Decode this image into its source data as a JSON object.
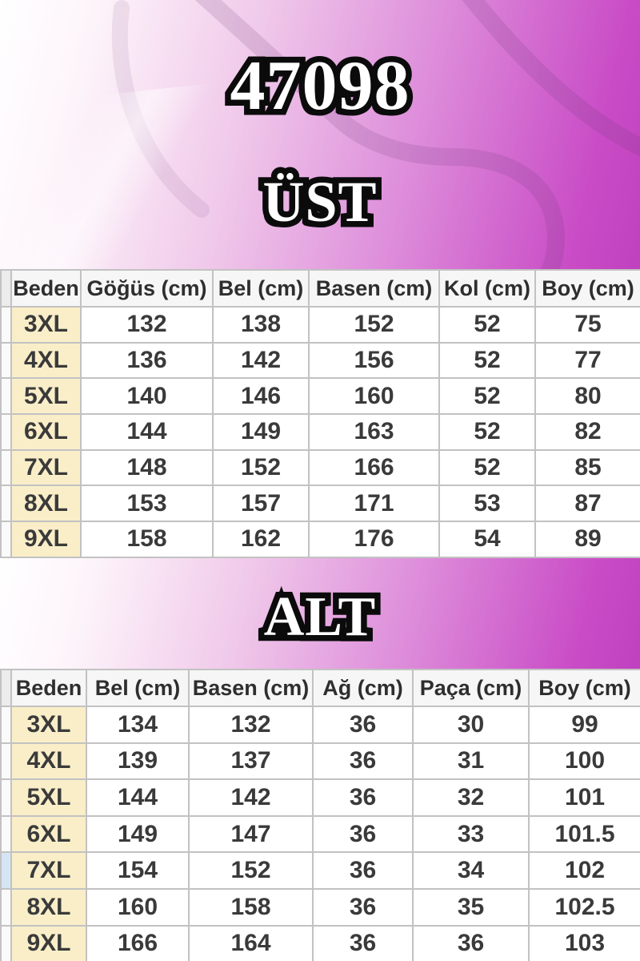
{
  "page": {
    "product_code": "47098",
    "section_top_label": "ÜST",
    "section_bottom_label": "ALT"
  },
  "icons": {
    "background": "hanger-icon"
  },
  "colors": {
    "gradient_magenta": "#c041bf",
    "gradient_white": "#ffffff",
    "cell_cream": "#f9eec8",
    "cell_white": "#ffffff",
    "header_gray": "#f6f6f6",
    "border_gray": "#c2c2c2",
    "sliver_blue": "#d5e5f4",
    "title_fill": "#ffffff",
    "title_outline": "#0b0b0b",
    "table_text": "#3a3a3a"
  },
  "tables": [
    {
      "name": "ust",
      "headers": [
        "Beden",
        "Göğüs (cm)",
        "Bel (cm)",
        "Basen (cm)",
        "Kol (cm)",
        "Boy (cm)"
      ],
      "rows": [
        [
          "3XL",
          "132",
          "138",
          "152",
          "52",
          "75"
        ],
        [
          "4XL",
          "136",
          "142",
          "156",
          "52",
          "77"
        ],
        [
          "5XL",
          "140",
          "146",
          "160",
          "52",
          "80"
        ],
        [
          "6XL",
          "144",
          "149",
          "163",
          "52",
          "82"
        ],
        [
          "7XL",
          "148",
          "152",
          "166",
          "52",
          "85"
        ],
        [
          "8XL",
          "153",
          "157",
          "171",
          "53",
          "87"
        ],
        [
          "9XL",
          "158",
          "162",
          "176",
          "54",
          "89"
        ]
      ]
    },
    {
      "name": "alt",
      "headers": [
        "Beden",
        "Bel (cm)",
        "Basen (cm)",
        "Ağ (cm)",
        "Paça (cm)",
        "Boy (cm)"
      ],
      "rows": [
        [
          "3XL",
          "134",
          "132",
          "36",
          "30",
          "99"
        ],
        [
          "4XL",
          "139",
          "137",
          "36",
          "31",
          "100"
        ],
        [
          "5XL",
          "144",
          "142",
          "36",
          "32",
          "101"
        ],
        [
          "6XL",
          "149",
          "147",
          "36",
          "33",
          "101.5"
        ],
        [
          "7XL",
          "154",
          "152",
          "36",
          "34",
          "102"
        ],
        [
          "8XL",
          "160",
          "158",
          "36",
          "35",
          "102.5"
        ],
        [
          "9XL",
          "166",
          "164",
          "36",
          "36",
          "103"
        ]
      ],
      "highlighted_row": "7XL"
    }
  ]
}
